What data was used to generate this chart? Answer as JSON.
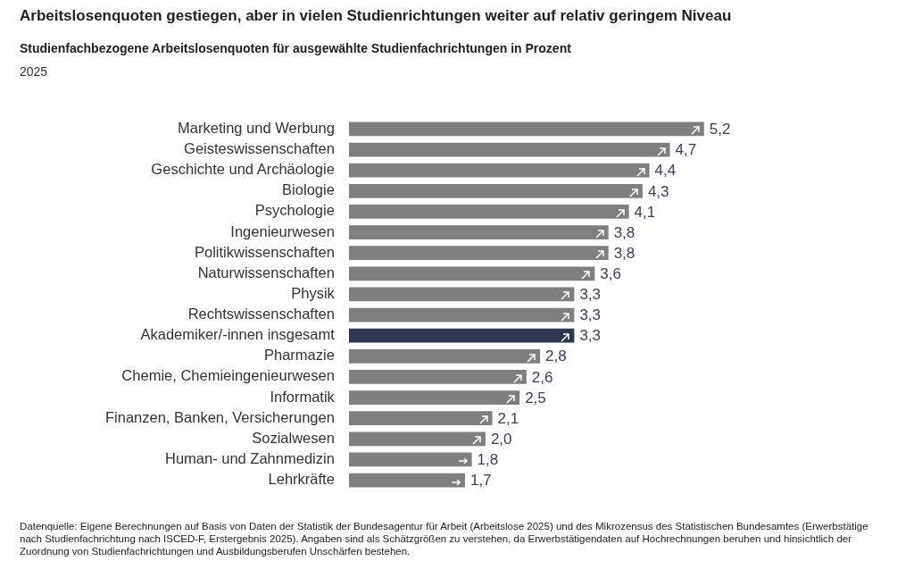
{
  "chart_data": {
    "type": "bar",
    "orientation": "horizontal",
    "title": "Arbeitslosenquoten gestiegen, aber in vielen Studienrichtungen weiter auf relativ geringem Niveau",
    "subtitle": "Studienfachbezogene Arbeitslosenquoten für ausgewählte Studienfachrichtungen in Prozent",
    "categories": [
      "Marketing und Werbung",
      "Geisteswissenschaften",
      "Geschichte und Archäologie",
      "Biologie",
      "Psychologie",
      "Ingenieurwesen",
      "Politikwissenschaften",
      "Naturwissenschaften",
      "Physik",
      "Rechtswissenschaften",
      "Akademiker/-innen insgesamt",
      "Pharmazie",
      "Chemie, Chemieingenieurwesen",
      "Informatik",
      "Finanzen, Banken, Versicherungen",
      "Sozialwesen",
      "Human- und Zahnmedizin",
      "Lehrkräfte"
    ],
    "values": [
      5.2,
      4.7,
      4.4,
      4.3,
      4.1,
      3.8,
      3.8,
      3.6,
      3.3,
      3.3,
      3.3,
      2.8,
      2.6,
      2.5,
      2.1,
      2.0,
      1.8,
      1.7
    ],
    "colors": [
      "#7f7f7f",
      "#7f7f7f",
      "#7f7f7f",
      "#7f7f7f",
      "#7f7f7f",
      "#7f7f7f",
      "#7f7f7f",
      "#7f7f7f",
      "#7f7f7f",
      "#7f7f7f",
      "#2f3650",
      "#7f7f7f",
      "#7f7f7f",
      "#7f7f7f",
      "#7f7f7f",
      "#7f7f7f",
      "#7f7f7f",
      "#7f7f7f"
    ],
    "value_labels": [
      "5,2",
      "4,7",
      "4,4",
      "4,3",
      "4,1",
      "3,8",
      "3,8",
      "3,6",
      "3,3",
      "3,3",
      "3,3",
      "2,8",
      "2,6",
      "2,5",
      "2,1",
      "2,0",
      "1,8",
      "1,7"
    ],
    "legend": false,
    "annotations": [
      "2025",
      "Datenquelle: Eigene Berechnungen auf Basis von Daten der Statistik der Bundesagentur für Arbeit  (Arbeitslose 2025) und des Mikrozensus des Statistischen Bundesamtes (Erwerbstätige nach Studienfachrichtung nach ISCED-F, Erstergebnis 2025). Angaben sind als Schätzgrößen zu verstehen, da Erwerbstätigendaten auf Hochrechnungen beruhen und hinsichtlich der Zuordnung von Studienfachrichtungen und Ausbildungsberufen Unschärfen bestehen."
    ]
  }
}
